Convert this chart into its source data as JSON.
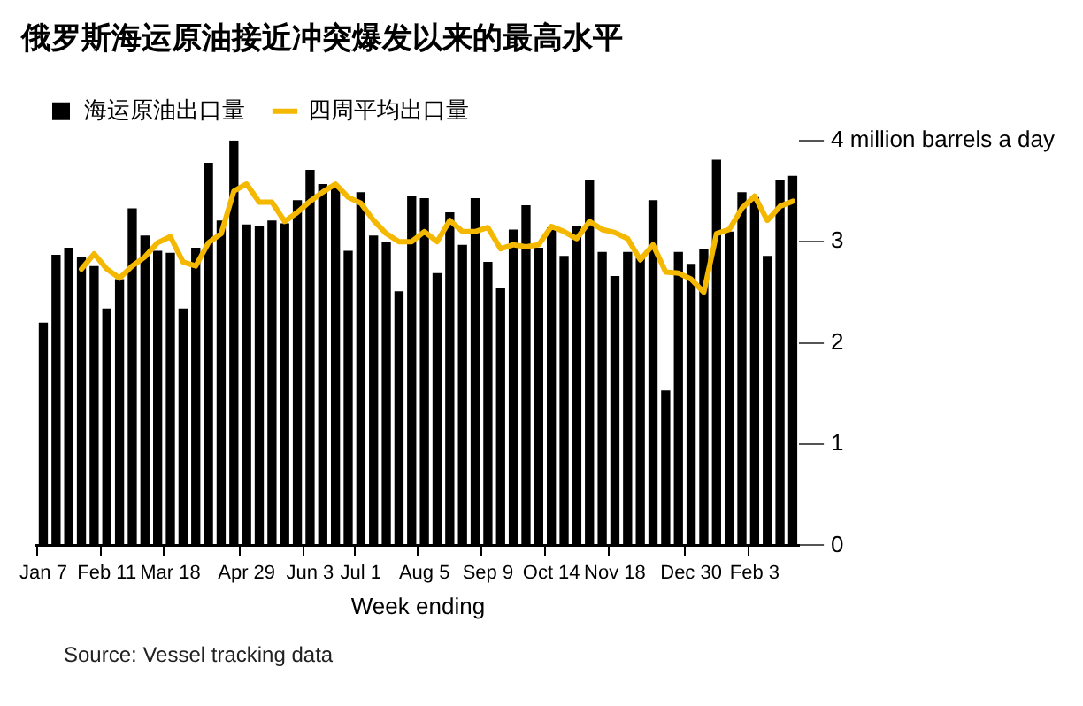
{
  "chart_data": {
    "type": "bar",
    "title": "俄罗斯海运原油接近冲突爆发以来的最高水平",
    "xlabel": "Week ending",
    "categories": [
      "Jan 7",
      null,
      null,
      null,
      null,
      "Feb 11",
      null,
      null,
      null,
      null,
      "Mar 18",
      null,
      null,
      null,
      null,
      null,
      "Apr 29",
      null,
      null,
      null,
      null,
      "Jun 3",
      null,
      null,
      null,
      "Jul 1",
      null,
      null,
      null,
      null,
      "Aug 5",
      null,
      null,
      null,
      null,
      "Sep 9",
      null,
      null,
      null,
      null,
      "Oct 14",
      null,
      null,
      null,
      null,
      "Nov 18",
      null,
      null,
      null,
      null,
      null,
      "Dec 30",
      null,
      null,
      null,
      null,
      "Feb 3",
      null,
      null,
      null
    ],
    "series": [
      {
        "name": "海运原油出口量",
        "color": "#000000",
        "values": [
          2.2,
          2.87,
          2.94,
          2.85,
          2.76,
          2.34,
          2.63,
          3.33,
          3.06,
          2.91,
          2.89,
          2.34,
          2.94,
          3.78,
          3.21,
          4.0,
          3.17,
          3.15,
          3.21,
          3.18,
          3.41,
          3.71,
          3.57,
          3.55,
          2.91,
          3.49,
          3.06,
          3.0,
          2.51,
          3.45,
          3.43,
          2.69,
          3.29,
          2.97,
          3.43,
          2.8,
          2.54,
          3.12,
          3.36,
          2.94,
          3.14,
          2.86,
          3.15,
          3.61,
          2.9,
          2.66,
          2.9,
          2.84,
          3.41,
          1.53,
          2.9,
          2.78,
          2.93,
          3.81,
          3.1,
          3.49,
          3.44,
          2.86,
          3.61,
          3.65
        ]
      },
      {
        "name": "四周平均出口量",
        "type": "line",
        "color": "#f5b800",
        "values": [
          null,
          null,
          null,
          2.73,
          2.88,
          2.73,
          2.64,
          2.76,
          2.85,
          2.99,
          3.05,
          2.8,
          2.76,
          2.99,
          3.08,
          3.5,
          3.57,
          3.39,
          3.39,
          3.2,
          3.29,
          3.4,
          3.49,
          3.57,
          3.44,
          3.38,
          3.21,
          3.08,
          3.0,
          3.0,
          3.1,
          3.0,
          3.21,
          3.1,
          3.1,
          3.14,
          2.93,
          2.97,
          2.95,
          2.97,
          3.15,
          3.1,
          3.03,
          3.2,
          3.12,
          3.09,
          3.03,
          2.82,
          2.97,
          2.7,
          2.69,
          2.63,
          2.5,
          3.08,
          3.12,
          3.33,
          3.45,
          3.21,
          3.35,
          3.4
        ]
      }
    ],
    "ylim": [
      0,
      4
    ],
    "yticks": [
      0,
      1,
      2,
      3,
      {
        "value": 4,
        "label": "4 million barrels a day"
      }
    ],
    "grid": false,
    "legend": "top left",
    "marker": "none",
    "annotations": [
      "Source: Vessel tracking data"
    ]
  }
}
